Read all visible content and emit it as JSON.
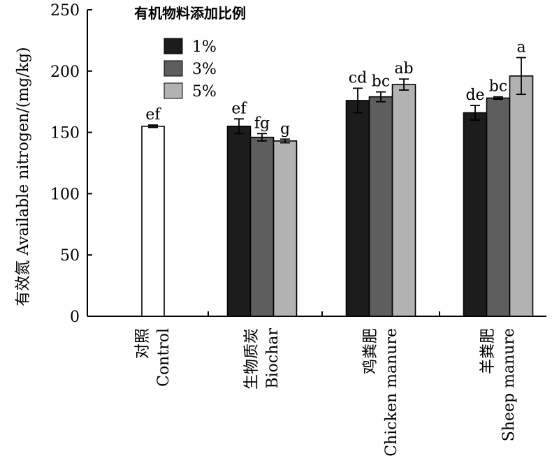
{
  "chart_data": {
    "type": "bar",
    "ylabel": "有效氮 Available nitrogen/(mg/kg)",
    "ylim": [
      0,
      250
    ],
    "yticks": [
      0,
      50,
      100,
      150,
      200,
      250
    ],
    "legend": {
      "title": "有机物料添加比例",
      "placement": "top-center",
      "entries": [
        {
          "name": "1%",
          "color": "#1c1c1c"
        },
        {
          "name": "3%",
          "color": "#5e5e5e"
        },
        {
          "name": "5%",
          "color": "#b2b2b2"
        }
      ]
    },
    "groups": [
      {
        "label_cn": "对照",
        "label_en": "Control",
        "bars": [
          {
            "series": "control",
            "value": 155,
            "err": 1,
            "sig": "ef",
            "color": "#ffffff"
          }
        ]
      },
      {
        "label_cn": "生物质炭",
        "label_en": "Biochar",
        "bars": [
          {
            "series": "1%",
            "value": 155,
            "err": 6,
            "sig": "ef",
            "color": "#1c1c1c"
          },
          {
            "series": "3%",
            "value": 146,
            "err": 3,
            "sig": "fg",
            "color": "#5e5e5e"
          },
          {
            "series": "5%",
            "value": 143,
            "err": 1.5,
            "sig": "g",
            "color": "#b2b2b2"
          }
        ]
      },
      {
        "label_cn": "鸡粪肥",
        "label_en": "Chicken manure",
        "bars": [
          {
            "series": "1%",
            "value": 176,
            "err": 10,
            "sig": "cd",
            "color": "#1c1c1c"
          },
          {
            "series": "3%",
            "value": 179,
            "err": 4,
            "sig": "bc",
            "color": "#5e5e5e"
          },
          {
            "series": "5%",
            "value": 189,
            "err": 4.5,
            "sig": "ab",
            "color": "#b2b2b2"
          }
        ]
      },
      {
        "label_cn": "羊粪肥",
        "label_en": "Sheep manure",
        "bars": [
          {
            "series": "1%",
            "value": 166,
            "err": 6,
            "sig": "de",
            "color": "#1c1c1c"
          },
          {
            "series": "3%",
            "value": 178,
            "err": 1,
            "sig": "bc",
            "color": "#5e5e5e"
          },
          {
            "series": "5%",
            "value": 196,
            "err": 15,
            "sig": "a",
            "color": "#b2b2b2"
          }
        ]
      }
    ]
  }
}
